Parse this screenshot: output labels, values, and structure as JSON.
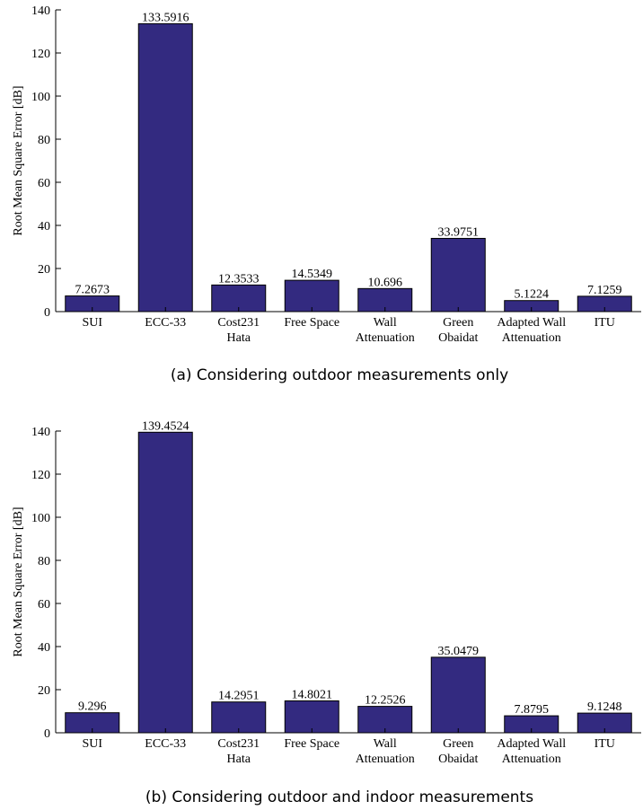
{
  "chart_data": [
    {
      "type": "bar",
      "caption": "(a) Considering outdoor measurements only",
      "ylabel": "Root Mean Square Error [dB]",
      "ylim": [
        0,
        140
      ],
      "yticks": [
        0,
        20,
        40,
        60,
        80,
        100,
        120,
        140
      ],
      "categories": [
        [
          "SUI"
        ],
        [
          "ECC-33"
        ],
        [
          "Cost231",
          "Hata"
        ],
        [
          "Free Space"
        ],
        [
          "Wall",
          "Attenuation"
        ],
        [
          "Green",
          "Obaidat"
        ],
        [
          "Adapted Wall",
          "Attenuation"
        ],
        [
          "ITU"
        ]
      ],
      "values": [
        7.2673,
        133.5916,
        12.3533,
        14.5349,
        10.696,
        33.9751,
        5.1224,
        7.1259
      ],
      "value_labels": [
        "7.2673",
        "133.5916",
        "12.3533",
        "14.5349",
        "10.696",
        "33.9751",
        "5.1224",
        "7.1259"
      ],
      "bar_color": "#332a80",
      "grid": false
    },
    {
      "type": "bar",
      "caption": "(b) Considering outdoor and indoor measurements",
      "ylabel": "Root Mean Square Error [dB]",
      "ylim": [
        0,
        140
      ],
      "yticks": [
        0,
        20,
        40,
        60,
        80,
        100,
        120,
        140
      ],
      "categories": [
        [
          "SUI"
        ],
        [
          "ECC-33"
        ],
        [
          "Cost231",
          "Hata"
        ],
        [
          "Free Space"
        ],
        [
          "Wall",
          "Attenuation"
        ],
        [
          "Green",
          "Obaidat"
        ],
        [
          "Adapted Wall",
          "Attenuation"
        ],
        [
          "ITU"
        ]
      ],
      "values": [
        9.296,
        139.4524,
        14.2951,
        14.8021,
        12.2526,
        35.0479,
        7.8795,
        9.1248
      ],
      "value_labels": [
        "9.296",
        "139.4524",
        "14.2951",
        "14.8021",
        "12.2526",
        "35.0479",
        "7.8795",
        "9.1248"
      ],
      "bar_color": "#332a80",
      "grid": false
    }
  ]
}
